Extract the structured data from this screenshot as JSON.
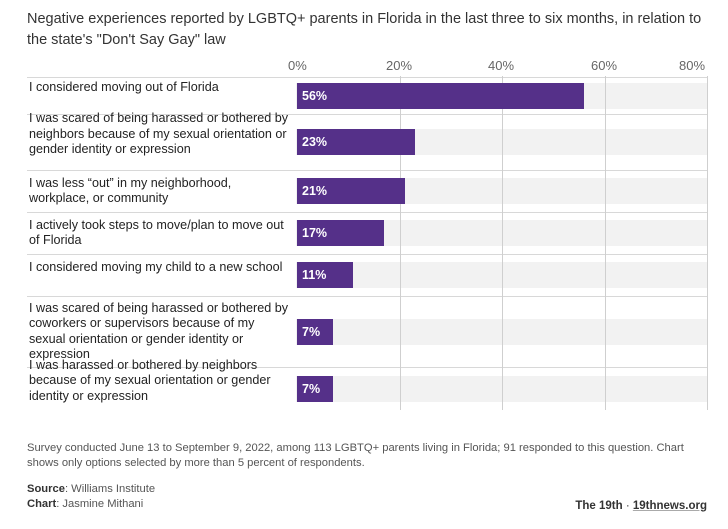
{
  "header": {
    "title": "Negative experiences reported by LGBTQ+ parents in Florida in the last three to six months, in relation to the state's \"Don't Say Gay\" law"
  },
  "chart_data": {
    "type": "bar",
    "orientation": "horizontal",
    "title": "Negative experiences reported by LGBTQ+ parents in Florida in the last three to six months, in relation to the state's \"Don't Say Gay\" law",
    "xlim": [
      0,
      80
    ],
    "x_ticks": [
      "0%",
      "20%",
      "40%",
      "60%",
      "80%"
    ],
    "grid": true,
    "bar_color": "#553089",
    "band_color": "#f2f2f2",
    "categories": [
      "I considered moving out of Florida",
      "I was scared of being harassed or bothered by neighbors because of my sexual orientation or gender identity or expression",
      "I was less “out” in my neighborhood, workplace, or community",
      "I actively took steps to move/plan to move out of Florida",
      "I considered moving my child to a new school",
      "I was scared of being harassed or bothered by coworkers or supervisors because of my sexual orientation or gender identity or expression",
      "I was harassed or bothered by neighbors because of my sexual orientation or gender identity or expression"
    ],
    "values": [
      56,
      23,
      21,
      17,
      11,
      7,
      7
    ],
    "value_labels": [
      "56%",
      "23%",
      "21%",
      "17%",
      "11%",
      "7%",
      "7%"
    ]
  },
  "footer": {
    "note": "Survey conducted June 13 to September 9, 2022, among 113 LGBTQ+ parents living in Florida; 91 responded to this question. Chart shows only options selected by more than 5 percent of respondents.",
    "source_label": "Source",
    "source_value": ": Williams Institute",
    "chart_label": "Chart",
    "chart_value": ": Jasmine Mithani",
    "brand_name": "The 19th",
    "brand_sep": " · ",
    "brand_link": "19thnews.org"
  }
}
